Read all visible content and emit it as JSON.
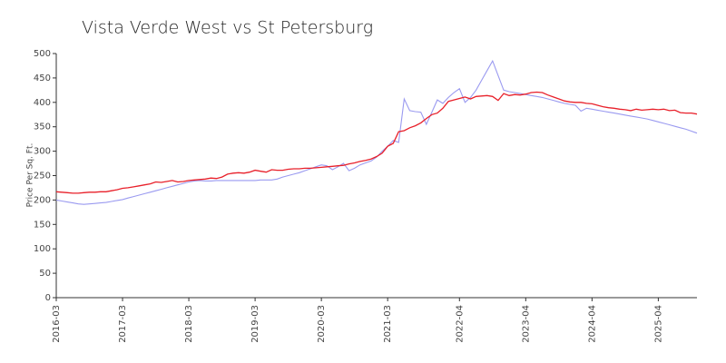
{
  "chart_data": {
    "type": "line",
    "title": "Vista Verde West vs St Petersburg",
    "y_label": "Price Per Sq. Ft.",
    "categories": [
      "2016-03",
      null,
      null,
      null,
      null,
      null,
      null,
      null,
      null,
      null,
      null,
      null,
      "2017-03",
      null,
      null,
      null,
      null,
      null,
      null,
      null,
      null,
      null,
      null,
      null,
      "2018-03",
      null,
      null,
      null,
      null,
      null,
      null,
      null,
      null,
      null,
      null,
      null,
      "2019-03",
      null,
      null,
      null,
      null,
      null,
      null,
      null,
      null,
      null,
      null,
      null,
      "2020-03",
      null,
      null,
      null,
      null,
      null,
      null,
      null,
      null,
      null,
      null,
      null,
      "2021-03",
      null,
      null,
      null,
      null,
      null,
      null,
      null,
      null,
      null,
      null,
      null,
      null,
      "2022-04",
      null,
      null,
      null,
      null,
      null,
      null,
      null,
      null,
      null,
      null,
      null,
      "2023-04",
      null,
      null,
      null,
      null,
      null,
      null,
      null,
      null,
      null,
      null,
      null,
      "2024-04",
      null,
      null,
      null,
      null,
      null,
      null,
      null,
      null,
      null,
      null,
      null,
      "2025-04",
      null,
      null,
      null,
      null,
      null,
      null,
      null
    ],
    "series": [
      {
        "color": "#9a9af0",
        "values": [
          200,
          198,
          196,
          194,
          192,
          191,
          192,
          193,
          194,
          195,
          197,
          199,
          201,
          204,
          207,
          210,
          213,
          216,
          219,
          222,
          225,
          228,
          231,
          234,
          237,
          239,
          240,
          239,
          239,
          240,
          240,
          240,
          240,
          240,
          240,
          240,
          240,
          241,
          241,
          241,
          243,
          247,
          250,
          253,
          256,
          260,
          264,
          268,
          272,
          270,
          262,
          268,
          275,
          260,
          265,
          272,
          276,
          280,
          288,
          300,
          310,
          322,
          318,
          407,
          383,
          381,
          380,
          355,
          380,
          405,
          398,
          410,
          420,
          428,
          400,
          410,
          425,
          445,
          465,
          485,
          455,
          425,
          422,
          420,
          418,
          416,
          414,
          412,
          410,
          407,
          404,
          401,
          398,
          396,
          394,
          382,
          388,
          386,
          384,
          382,
          380,
          378,
          376,
          374,
          372,
          370,
          368,
          366,
          363,
          360,
          357,
          354,
          351,
          348,
          345,
          341,
          337
        ]
      },
      {
        "color": "#e8202a",
        "values": [
          217,
          216,
          215,
          214,
          214,
          215,
          216,
          216,
          217,
          217,
          219,
          221,
          224,
          225,
          227,
          229,
          231,
          233,
          237,
          236,
          238,
          240,
          237,
          238,
          240,
          241,
          242,
          243,
          245,
          244,
          247,
          253,
          255,
          256,
          255,
          257,
          261,
          259,
          257,
          262,
          261,
          261,
          263,
          264,
          264,
          265,
          265,
          266,
          267,
          268,
          269,
          270,
          271,
          274,
          276,
          279,
          281,
          284,
          289,
          296,
          310,
          316,
          340,
          342,
          348,
          352,
          358,
          367,
          375,
          378,
          388,
          402,
          405,
          408,
          411,
          407,
          412,
          413,
          414,
          412,
          404,
          418,
          414,
          416,
          415,
          417,
          420,
          421,
          420,
          415,
          411,
          407,
          403,
          401,
          400,
          400,
          398,
          397,
          394,
          391,
          389,
          388,
          386,
          385,
          383,
          386,
          384,
          385,
          386,
          385,
          386,
          383,
          384,
          379,
          378,
          378,
          376
        ]
      }
    ],
    "ylim": [
      0,
      500
    ],
    "yticks": [
      0,
      50,
      100,
      150,
      200,
      250,
      300,
      350,
      400,
      450,
      500
    ],
    "grid": false
  }
}
